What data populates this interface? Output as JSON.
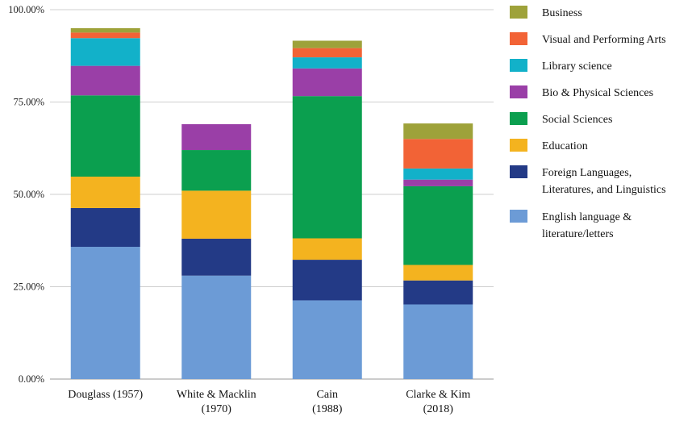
{
  "chart_data": {
    "type": "bar",
    "stacked": true,
    "categories": [
      [
        "Douglass (1957)"
      ],
      [
        "White & Macklin",
        "(1970)"
      ],
      [
        "Cain",
        "(1988)"
      ],
      [
        "Clarke & Kim",
        "(2018)"
      ]
    ],
    "ylim": [
      0,
      100
    ],
    "yticks": [
      0,
      25,
      50,
      75,
      100
    ],
    "ytick_labels": [
      "0.00%",
      "25.00%",
      "50.00%",
      "75.00%",
      "100.00%"
    ],
    "grid": true,
    "legend_position": "right",
    "series": [
      {
        "name": "English language &\nliterature/letters",
        "color": "#6c9bd6",
        "values": [
          35.8,
          28.0,
          21.3,
          20.2
        ]
      },
      {
        "name": "Foreign Languages,\nLiteratures, and Linguistics",
        "color": "#233a86",
        "values": [
          10.5,
          10.0,
          11.0,
          6.5
        ]
      },
      {
        "name": "Education",
        "color": "#f4b31f",
        "values": [
          8.5,
          13.0,
          5.8,
          4.2
        ]
      },
      {
        "name": "Social Sciences",
        "color": "#0b9f4f",
        "values": [
          22.0,
          11.0,
          38.5,
          21.3
        ]
      },
      {
        "name": "Bio & Physical Sciences",
        "color": "#9a3fa7",
        "values": [
          8.0,
          7.0,
          7.5,
          1.8
        ]
      },
      {
        "name": "Library science",
        "color": "#12b1c9",
        "values": [
          7.5,
          0,
          3.0,
          3.0
        ]
      },
      {
        "name": "Visual and Performing Arts",
        "color": "#f26336",
        "values": [
          1.5,
          0,
          2.5,
          8.0
        ]
      },
      {
        "name": "Business",
        "color": "#9ea23a",
        "values": [
          1.2,
          0,
          2.0,
          4.2
        ]
      }
    ]
  }
}
